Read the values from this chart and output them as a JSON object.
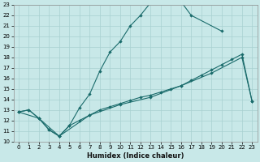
{
  "xlabel": "Humidex (Indice chaleur)",
  "bg_color": "#c8e8e8",
  "grid_color": "#a8d0d0",
  "line_color": "#1a6b6b",
  "xlim": [
    -0.5,
    23.5
  ],
  "ylim": [
    10,
    23
  ],
  "xticks": [
    0,
    1,
    2,
    3,
    4,
    5,
    6,
    7,
    8,
    9,
    10,
    11,
    12,
    13,
    14,
    15,
    16,
    17,
    18,
    19,
    20,
    21,
    22,
    23
  ],
  "yticks": [
    10,
    11,
    12,
    13,
    14,
    15,
    16,
    17,
    18,
    19,
    20,
    21,
    22,
    23
  ],
  "curve1_x": [
    0,
    1,
    2,
    3,
    4,
    5,
    6,
    7,
    8,
    9,
    10,
    11,
    12,
    13,
    14,
    15,
    16,
    17,
    20
  ],
  "curve1_y": [
    12.8,
    13.0,
    12.2,
    11.1,
    10.5,
    11.5,
    13.2,
    14.5,
    16.7,
    18.5,
    19.5,
    21.0,
    22.0,
    23.2,
    23.5,
    23.5,
    23.3,
    22.0,
    20.5
  ],
  "curve2_x": [
    0,
    1,
    2,
    3,
    4,
    5,
    6,
    7,
    8,
    9,
    10,
    11,
    12,
    13,
    14,
    15,
    16,
    17,
    18,
    19,
    20,
    21,
    22,
    23
  ],
  "curve2_y": [
    12.8,
    13.0,
    12.2,
    11.1,
    10.5,
    11.5,
    12.0,
    12.5,
    13.0,
    13.3,
    13.6,
    13.9,
    14.2,
    14.4,
    14.7,
    15.0,
    15.3,
    15.8,
    16.3,
    16.8,
    17.3,
    17.8,
    18.3,
    13.8
  ],
  "curve3_x": [
    0,
    2,
    4,
    7,
    10,
    13,
    16,
    19,
    22,
    23
  ],
  "curve3_y": [
    12.8,
    12.2,
    10.5,
    12.5,
    13.5,
    14.2,
    15.3,
    16.5,
    18.0,
    13.8
  ]
}
